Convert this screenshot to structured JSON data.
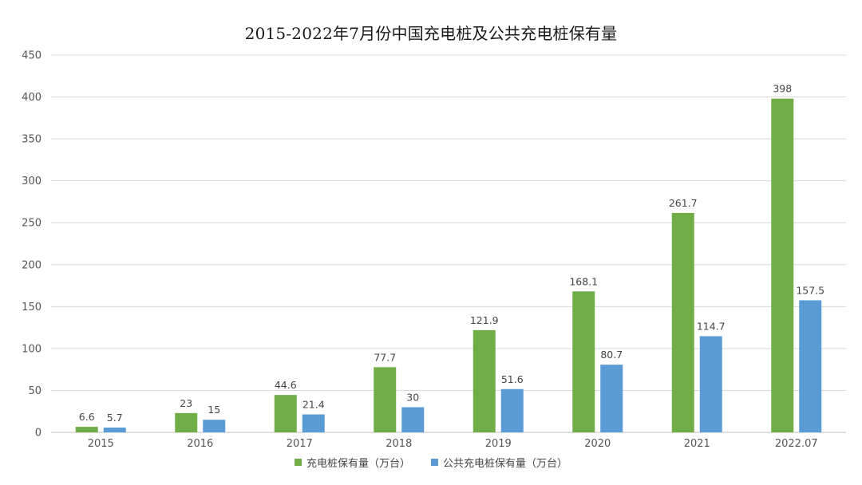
{
  "chart_data": {
    "type": "bar",
    "title": "2015-2022年7月份中国充电桩及公共充电桩保有量",
    "xlabel": "",
    "ylabel": "",
    "categories": [
      "2015",
      "2016",
      "2017",
      "2018",
      "2019",
      "2020",
      "2021",
      "2022.07"
    ],
    "ylim": [
      0,
      450
    ],
    "yticks": [
      "0",
      "50",
      "100",
      "150",
      "200",
      "250",
      "300",
      "350",
      "400",
      "450"
    ],
    "grid": true,
    "legend_position": "bottom",
    "series": [
      {
        "name": "充电桩保有量（万台）",
        "color": "#70ad47",
        "values": [
          6.6,
          23,
          44.6,
          77.7,
          121.9,
          168.1,
          261.7,
          398
        ],
        "labels": [
          "6.6",
          "23",
          "44.6",
          "77.7",
          "121.9",
          "168.1",
          "261.7",
          "398"
        ]
      },
      {
        "name": "公共充电桩保有量（万台）",
        "color": "#5b9bd5",
        "values": [
          5.7,
          15,
          21.4,
          30,
          51.6,
          80.7,
          114.7,
          157.5
        ],
        "labels": [
          "5.7",
          "15",
          "21.4",
          "30",
          "51.6",
          "80.7",
          "114.7",
          "157.5"
        ]
      }
    ]
  }
}
